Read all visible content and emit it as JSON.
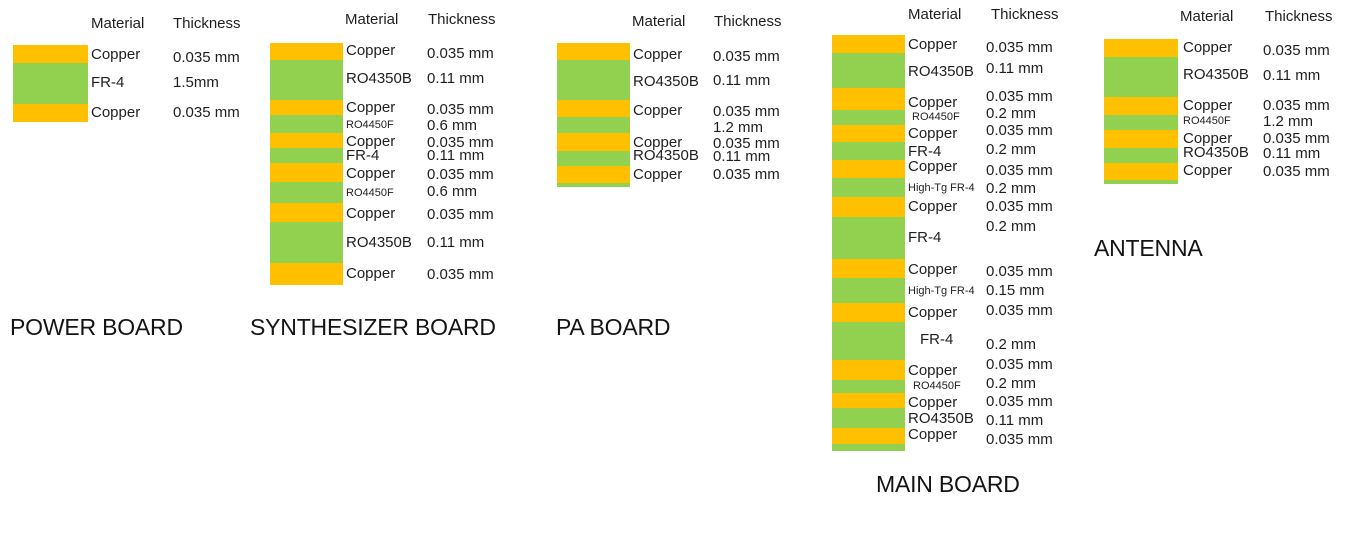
{
  "colors": {
    "copper": "#FFC000",
    "dielectric": "#92D050"
  },
  "boards": [
    {
      "title": "POWER BOARD",
      "columns": {
        "material": "Material",
        "thickness": "Thickness"
      },
      "layers": [
        {
          "material": "Copper",
          "thickness": "0.035 mm",
          "type": "copper"
        },
        {
          "material": "FR-4",
          "thickness": "1.5mm",
          "type": "dielectric"
        },
        {
          "material": "Copper",
          "thickness": "0.035 mm",
          "type": "copper"
        }
      ]
    },
    {
      "title": "SYNTHESIZER BOARD",
      "columns": {
        "material": "Material",
        "thickness": "Thickness"
      },
      "layers": [
        {
          "material": "Copper",
          "thickness": "0.035 mm",
          "type": "copper"
        },
        {
          "material": "RO4350B",
          "thickness": "0.11 mm",
          "type": "dielectric"
        },
        {
          "material": "Copper",
          "thickness": "0.035 mm",
          "type": "copper"
        },
        {
          "material": "RO4450F",
          "thickness": "0.6 mm",
          "type": "dielectric"
        },
        {
          "material": "Copper",
          "thickness": "0.035 mm",
          "type": "copper"
        },
        {
          "material": "FR-4",
          "thickness": "0.11 mm",
          "type": "dielectric"
        },
        {
          "material": "Copper",
          "thickness": "0.035 mm",
          "type": "copper"
        },
        {
          "material": "RO4450F",
          "thickness": "0.6 mm",
          "type": "dielectric"
        },
        {
          "material": "Copper",
          "thickness": "0.035 mm",
          "type": "copper"
        },
        {
          "material": "RO4350B",
          "thickness": "0.11 mm",
          "type": "dielectric"
        },
        {
          "material": "Copper",
          "thickness": "0.035 mm",
          "type": "copper"
        }
      ]
    },
    {
      "title": "PA BOARD",
      "columns": {
        "material": "Material",
        "thickness": "Thickness"
      },
      "layers": [
        {
          "material": "Copper",
          "thickness": "0.035 mm",
          "type": "copper"
        },
        {
          "material": "RO4350B",
          "thickness": "0.11 mm",
          "type": "dielectric"
        },
        {
          "material": "Copper",
          "thickness": "0.035 mm",
          "type": "copper"
        },
        {
          "material": "",
          "thickness": "1.2 mm",
          "type": "dielectric"
        },
        {
          "material": "Copper",
          "thickness": "0.035 mm",
          "type": "copper"
        },
        {
          "material": "RO4350B",
          "thickness": "0.11 mm",
          "type": "dielectric"
        },
        {
          "material": "Copper",
          "thickness": "0.035 mm",
          "type": "copper"
        }
      ]
    },
    {
      "title": "MAIN BOARD",
      "columns": {
        "material": "Material",
        "thickness": "Thickness"
      },
      "layers": [
        {
          "material": "Copper",
          "thickness": "0.035 mm",
          "type": "copper"
        },
        {
          "material": "RO4350B",
          "thickness": "0.11 mm",
          "type": "dielectric"
        },
        {
          "material": "Copper",
          "thickness": "0.035 mm",
          "type": "copper"
        },
        {
          "material": "RO4450F",
          "thickness": "0.2 mm",
          "type": "dielectric"
        },
        {
          "material": "Copper",
          "thickness": "0.035 mm",
          "type": "copper"
        },
        {
          "material": "FR-4",
          "thickness": "0.2 mm",
          "type": "dielectric"
        },
        {
          "material": "Copper",
          "thickness": "0.035 mm",
          "type": "copper"
        },
        {
          "material": "High-Tg FR-4",
          "thickness": "0.2 mm",
          "type": "dielectric"
        },
        {
          "material": "Copper",
          "thickness": "0.035 mm",
          "type": "copper"
        },
        {
          "material": "FR-4",
          "thickness": "0.2 mm",
          "type": "dielectric"
        },
        {
          "material": "Copper",
          "thickness": "0.035 mm",
          "type": "copper"
        },
        {
          "material": "High-Tg FR-4",
          "thickness": "0.15 mm",
          "type": "dielectric"
        },
        {
          "material": "Copper",
          "thickness": "0.035 mm",
          "type": "copper"
        },
        {
          "material": "FR-4",
          "thickness": "0.2 mm",
          "type": "dielectric"
        },
        {
          "material": "Copper",
          "thickness": "0.035 mm",
          "type": "copper"
        },
        {
          "material": "RO4450F",
          "thickness": "0.2 mm",
          "type": "dielectric"
        },
        {
          "material": "Copper",
          "thickness": "0.035 mm",
          "type": "copper"
        },
        {
          "material": "RO4350B",
          "thickness": "0.11 mm",
          "type": "dielectric"
        },
        {
          "material": "Copper",
          "thickness": "0.035 mm",
          "type": "copper"
        }
      ]
    },
    {
      "title": "ANTENNA",
      "columns": {
        "material": "Material",
        "thickness": "Thickness"
      },
      "layers": [
        {
          "material": "Copper",
          "thickness": "0.035 mm",
          "type": "copper"
        },
        {
          "material": "RO4350B",
          "thickness": "0.11 mm",
          "type": "dielectric"
        },
        {
          "material": "Copper",
          "thickness": "0.035 mm",
          "type": "copper"
        },
        {
          "material": "RO4450F",
          "thickness": "1.2 mm",
          "type": "dielectric"
        },
        {
          "material": "Copper",
          "thickness": "0.035 mm",
          "type": "copper"
        },
        {
          "material": "RO4350B",
          "thickness": "0.11 mm",
          "type": "dielectric"
        },
        {
          "material": "Copper",
          "thickness": "0.035 mm",
          "type": "copper"
        }
      ]
    }
  ]
}
